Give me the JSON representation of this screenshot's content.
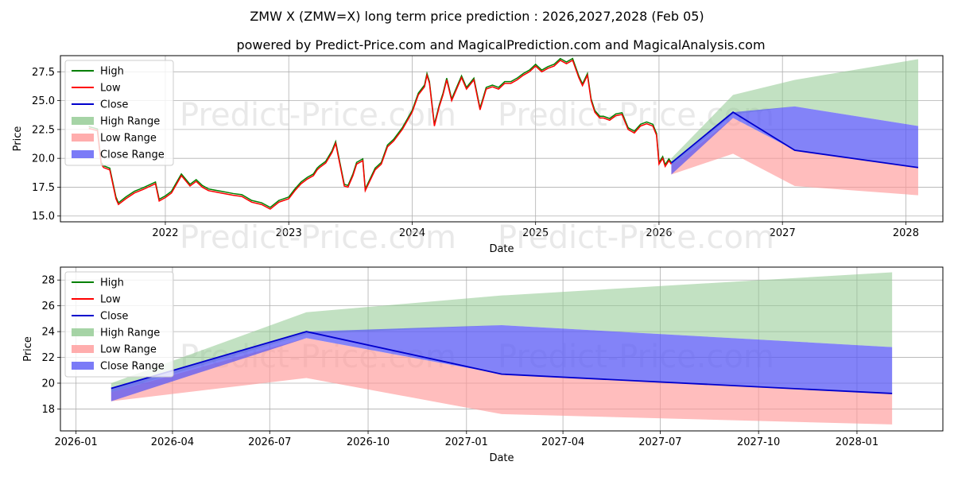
{
  "title": "ZMW X (ZMW=X) long term price prediction : 2026,2027,2028 (Feb 05)",
  "subtitle": "powered by Predict-Price.com and MagicalPrediction.com and MagicalAnalysis.com",
  "watermark": "Predict-Price.com",
  "colors": {
    "high": "#008000",
    "low": "#ff0000",
    "close": "#0000cd",
    "high_range": "#90c990",
    "low_range": "#ff9999",
    "close_range": "#5a5af5"
  },
  "legend": [
    "High",
    "Low",
    "Close",
    "High Range",
    "Low Range",
    "Close Range"
  ],
  "chart_data": [
    {
      "type": "line",
      "title": "",
      "xlabel": "Date",
      "ylabel": "Price",
      "xlim": [
        2021.15,
        2028.3
      ],
      "ylim": [
        14.5,
        28.9
      ],
      "xticks": [
        2022,
        2023,
        2024,
        2025,
        2026,
        2027,
        2028
      ],
      "xtick_labels": [
        "2022",
        "2023",
        "2024",
        "2025",
        "2026",
        "2027",
        "2028"
      ],
      "yticks": [
        15.0,
        17.5,
        20.0,
        22.5,
        25.0,
        27.5
      ],
      "ytick_labels": [
        "15.0",
        "17.5",
        "20.0",
        "22.5",
        "25.0",
        "27.5"
      ],
      "history": {
        "x": [
          2021.38,
          2021.45,
          2021.48,
          2021.5,
          2021.55,
          2021.6,
          2021.62,
          2021.68,
          2021.75,
          2021.82,
          2021.92,
          2021.95,
          2022.0,
          2022.05,
          2022.13,
          2022.2,
          2022.25,
          2022.3,
          2022.35,
          2022.4,
          2022.45,
          2022.55,
          2022.62,
          2022.7,
          2022.78,
          2022.85,
          2022.92,
          2023.0,
          2023.05,
          2023.1,
          2023.15,
          2023.2,
          2023.23,
          2023.25,
          2023.3,
          2023.35,
          2023.38,
          2023.45,
          2023.48,
          2023.52,
          2023.55,
          2023.6,
          2023.62,
          2023.7,
          2023.75,
          2023.8,
          2023.85,
          2023.92,
          2024.0,
          2024.05,
          2024.1,
          2024.12,
          2024.14,
          2024.18,
          2024.22,
          2024.25,
          2024.28,
          2024.32,
          2024.36,
          2024.4,
          2024.44,
          2024.5,
          2024.55,
          2024.6,
          2024.65,
          2024.7,
          2024.75,
          2024.8,
          2024.85,
          2024.9,
          2024.95,
          2025.0,
          2025.05,
          2025.1,
          2025.15,
          2025.2,
          2025.25,
          2025.3,
          2025.35,
          2025.38,
          2025.42,
          2025.45,
          2025.48,
          2025.52,
          2025.55,
          2025.6,
          2025.65,
          2025.7,
          2025.75,
          2025.8,
          2025.85,
          2025.9,
          2025.95,
          2025.98,
          2026.0,
          2026.03,
          2026.05,
          2026.08,
          2026.1
        ],
        "y": [
          22.6,
          22.4,
          19.5,
          19.2,
          19.0,
          16.5,
          16.0,
          16.5,
          17.0,
          17.3,
          17.8,
          16.3,
          16.6,
          17.0,
          18.5,
          17.6,
          18.0,
          17.5,
          17.2,
          17.1,
          17.0,
          16.8,
          16.7,
          16.2,
          16.0,
          15.6,
          16.2,
          16.5,
          17.2,
          17.8,
          18.2,
          18.5,
          19.0,
          19.2,
          19.6,
          20.5,
          21.3,
          17.6,
          17.5,
          18.5,
          19.5,
          19.8,
          17.2,
          19.0,
          19.5,
          21.0,
          21.5,
          22.5,
          24.0,
          25.5,
          26.2,
          27.2,
          26.5,
          22.8,
          24.5,
          25.5,
          26.8,
          25.0,
          26.0,
          27.0,
          26.0,
          26.8,
          24.2,
          26.0,
          26.2,
          26.0,
          26.5,
          26.5,
          26.8,
          27.2,
          27.5,
          28.0,
          27.5,
          27.8,
          28.0,
          28.5,
          28.2,
          28.5,
          27.0,
          26.3,
          27.2,
          25.0,
          24.0,
          23.5,
          23.5,
          23.3,
          23.7,
          23.8,
          22.5,
          22.2,
          22.8,
          23.0,
          22.8,
          22.0,
          19.5,
          20.0,
          19.3,
          19.8,
          19.5
        ]
      },
      "forecast": {
        "x": [
          2026.1,
          2026.6,
          2027.1,
          2028.1
        ],
        "close": [
          19.6,
          24.0,
          20.7,
          19.2
        ],
        "high_range": [
          [
            19.3,
            20.0
          ],
          [
            23.8,
            25.5
          ],
          [
            24.5,
            26.8
          ],
          [
            22.8,
            28.6
          ]
        ],
        "low_range": [
          [
            18.6,
            19.3
          ],
          [
            20.4,
            23.5
          ],
          [
            17.6,
            20.7
          ],
          [
            16.8,
            19.2
          ]
        ],
        "close_range": [
          [
            18.6,
            19.6
          ],
          [
            23.5,
            24.0
          ],
          [
            20.7,
            24.5
          ],
          [
            19.2,
            22.8
          ]
        ]
      }
    },
    {
      "type": "line",
      "title": "",
      "xlabel": "Date",
      "ylabel": "Price",
      "xlim": [
        2025.96,
        2028.22
      ],
      "ylim": [
        16.3,
        29.0
      ],
      "xticks": [
        2026.0,
        2026.247,
        2026.496,
        2026.748,
        2027.0,
        2027.247,
        2027.496,
        2027.748,
        2028.0
      ],
      "xtick_labels": [
        "2026-01",
        "2026-04",
        "2026-07",
        "2026-10",
        "2027-01",
        "2027-04",
        "2027-07",
        "2027-10",
        "2028-01"
      ],
      "yticks": [
        18,
        20,
        22,
        24,
        26,
        28
      ],
      "ytick_labels": [
        "18",
        "20",
        "22",
        "24",
        "26",
        "28"
      ],
      "forecast": {
        "x": [
          2026.09,
          2026.59,
          2027.09,
          2028.09
        ],
        "close": [
          19.6,
          24.0,
          20.7,
          19.2
        ],
        "high_range": [
          [
            19.3,
            20.0
          ],
          [
            23.8,
            25.5
          ],
          [
            24.5,
            26.8
          ],
          [
            22.8,
            28.6
          ]
        ],
        "low_range": [
          [
            18.6,
            19.3
          ],
          [
            20.4,
            23.5
          ],
          [
            17.6,
            20.7
          ],
          [
            16.8,
            19.2
          ]
        ],
        "close_range": [
          [
            18.6,
            19.6
          ],
          [
            23.5,
            24.0
          ],
          [
            20.7,
            24.5
          ],
          [
            19.2,
            22.8
          ]
        ]
      }
    }
  ]
}
